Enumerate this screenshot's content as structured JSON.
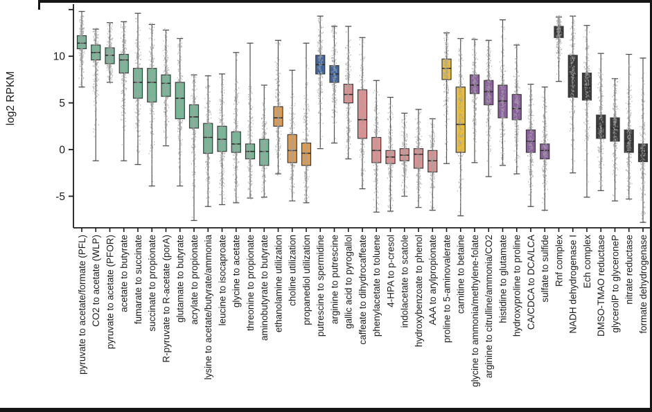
{
  "chart_data": {
    "type": "box",
    "title": "",
    "ylabel": "log2 RPKM",
    "xlabel": "",
    "ylim": [
      -8.5,
      15.4
    ],
    "yticks": [
      15,
      10,
      5,
      0,
      -5
    ],
    "ytick_labels": [
      "",
      "10",
      "5",
      "0",
      "-5"
    ],
    "grid": false,
    "legend": "none",
    "points": "jittered gray points overlaid on each box",
    "palette": {
      "green": "#72b894",
      "orange": "#df9b4e",
      "blue": "#3f66a0",
      "salmon": "#e28f8f",
      "yellow": "#e9bc3a",
      "purple": "#8b5f9d",
      "dark": "#3c3c3c"
    },
    "style": {
      "box_border": "#3a3a3a",
      "median_color": "#2a2a2a",
      "whisker_color": "#4f4f4f",
      "point_color": "#a3a3a3",
      "axis_color": "#1a1a1a",
      "label_color": "#1c1c1c"
    },
    "stats_format": [
      "whisker_low",
      "q1",
      "median",
      "q3",
      "whisker_high"
    ],
    "categories": [
      {
        "label": "pyruvate to acetate/formate (PFL)",
        "group": "green",
        "stats": [
          6.7,
          10.8,
          11.4,
          12.2,
          14.8
        ]
      },
      {
        "label": "CO2 to acetate (WLP)",
        "group": "green",
        "stats": [
          -1.2,
          9.6,
          10.4,
          11.2,
          12.9
        ]
      },
      {
        "label": "pyruvate to acetate (PFOR)",
        "group": "green",
        "stats": [
          7.2,
          9.2,
          10.1,
          10.9,
          13.6
        ]
      },
      {
        "label": "acetate to butyrate",
        "group": "green",
        "stats": [
          -1.2,
          8.2,
          9.6,
          10.2,
          13.7
        ]
      },
      {
        "label": "fumarate to succinate",
        "group": "green",
        "stats": [
          -1.6,
          5.5,
          7.2,
          8.7,
          14.6
        ]
      },
      {
        "label": "succinate to propionate",
        "group": "green",
        "stats": [
          -3.9,
          5.1,
          7.2,
          8.7,
          13.4
        ]
      },
      {
        "label": "R-pyruvate to R-acetate (porA)",
        "group": "green",
        "stats": [
          0.4,
          5.7,
          7.1,
          8.0,
          12.8
        ]
      },
      {
        "label": "glutamate to butyrate",
        "group": "green",
        "stats": [
          -3.9,
          3.3,
          5.5,
          7.2,
          11.9
        ]
      },
      {
        "label": "acrylate to propionate",
        "group": "green",
        "stats": [
          -7.6,
          2.3,
          3.5,
          4.8,
          8.0
        ]
      },
      {
        "label": "lysine to acetate/butyrate/ammonia",
        "group": "green",
        "stats": [
          -6.1,
          -0.4,
          1.3,
          2.8,
          7.9
        ]
      },
      {
        "label": "leucine to isocaproate",
        "group": "green",
        "stats": [
          -5.9,
          -0.2,
          1.1,
          2.5,
          8.1
        ]
      },
      {
        "label": "glycine to acetate",
        "group": "green",
        "stats": [
          -5.7,
          -0.3,
          0.6,
          1.9,
          10.4
        ]
      },
      {
        "label": "threonine to propionate",
        "group": "green",
        "stats": [
          -5.2,
          -1.0,
          -0.2,
          0.6,
          11.4
        ]
      },
      {
        "label": "aminobutyrate to butyrate",
        "group": "green",
        "stats": [
          -5.1,
          -1.7,
          -0.2,
          1.1,
          6.9
        ]
      },
      {
        "label": "ethanolamine utilization",
        "group": "orange",
        "stats": [
          -2.6,
          2.5,
          3.4,
          4.6,
          11.7
        ]
      },
      {
        "label": "choline utilization",
        "group": "orange",
        "stats": [
          -5.5,
          -1.4,
          -0.1,
          1.6,
          8.5
        ]
      },
      {
        "label": "propanediol utilization",
        "group": "orange",
        "stats": [
          -5.7,
          -1.7,
          -0.4,
          0.7,
          11.4
        ]
      },
      {
        "label": "putrescine to spermidine",
        "group": "blue",
        "stats": [
          0.1,
          8.1,
          9.1,
          10.1,
          14.3
        ]
      },
      {
        "label": "arginine to putrescine",
        "group": "blue",
        "stats": [
          0.7,
          7.2,
          8.1,
          9.0,
          13.2
        ]
      },
      {
        "label": "gallic acid to pyrogallol",
        "group": "salmon",
        "stats": [
          -1.0,
          5.0,
          5.9,
          7.0,
          13.2
        ]
      },
      {
        "label": "caffeate to dihydrocaffeate",
        "group": "salmon",
        "stats": [
          -4.2,
          1.2,
          3.2,
          6.4,
          12.0
        ]
      },
      {
        "label": "phenylacetate to toluene",
        "group": "salmon",
        "stats": [
          -6.7,
          -1.4,
          -0.1,
          1.3,
          7.4
        ]
      },
      {
        "label": "4-HPA to p-cresol",
        "group": "salmon",
        "stats": [
          -6.6,
          -1.5,
          -0.8,
          -0.1,
          5.6
        ]
      },
      {
        "label": "indolacetate to scatole",
        "group": "salmon",
        "stats": [
          -5.0,
          -1.2,
          -0.6,
          0.1,
          3.9
        ]
      },
      {
        "label": "hydroxybenzoate to phenol",
        "group": "salmon",
        "stats": [
          -6.2,
          -2.0,
          -0.5,
          0.1,
          4.3
        ]
      },
      {
        "label": "AAA to arylpropionate",
        "group": "salmon",
        "stats": [
          -6.5,
          -2.4,
          -1.2,
          -0.1,
          3.3
        ]
      },
      {
        "label": "proline to 5-aminovalerate",
        "group": "yellow",
        "stats": [
          -1.5,
          7.5,
          8.7,
          9.7,
          12.5
        ]
      },
      {
        "label": "carnitine to betaine",
        "group": "yellow",
        "stats": [
          -7.1,
          -0.3,
          2.7,
          6.7,
          11.9
        ]
      },
      {
        "label": "glycine to ammonia/methylene-folate",
        "group": "purple",
        "stats": [
          -1.4,
          6.0,
          6.9,
          8.0,
          11.8
        ]
      },
      {
        "label": "arginine to citrulline/ammonia/CO2",
        "group": "purple",
        "stats": [
          -2.9,
          4.8,
          6.2,
          7.4,
          11.7
        ]
      },
      {
        "label": "histidine to glutamate",
        "group": "purple",
        "stats": [
          -1.7,
          3.4,
          5.2,
          6.9,
          13.9
        ]
      },
      {
        "label": "hydroxyproline to proline",
        "group": "purple",
        "stats": [
          -2.6,
          3.2,
          4.4,
          5.9,
          11.2
        ]
      },
      {
        "label": "CA/CDCA to DCA/LCA",
        "group": "purple",
        "stats": [
          -6.1,
          -0.3,
          0.9,
          2.1,
          7.0
        ]
      },
      {
        "label": "sulfate to sulfide",
        "group": "purple",
        "stats": [
          -6.5,
          -1.0,
          -0.1,
          0.6,
          6.7
        ]
      },
      {
        "label": "Rnf complex",
        "group": "dark",
        "stats": [
          7.3,
          12.0,
          12.7,
          13.2,
          14.2
        ]
      },
      {
        "label": "NADH dehydrogenase I",
        "group": "dark",
        "stats": [
          -2.5,
          5.6,
          7.9,
          10.1,
          14.3
        ]
      },
      {
        "label": "Ech complex",
        "group": "dark",
        "stats": [
          -5.1,
          5.3,
          6.8,
          8.2,
          13.3
        ]
      },
      {
        "label": "DMSO-TMAO reductase",
        "group": "dark",
        "stats": [
          -4.4,
          1.2,
          2.5,
          3.7,
          10.3
        ]
      },
      {
        "label": "glycerolP to glyceroneP",
        "group": "dark",
        "stats": [
          -5.5,
          0.9,
          2.3,
          3.4,
          7.6
        ]
      },
      {
        "label": "nitrate reductase",
        "group": "dark",
        "stats": [
          -5.3,
          -0.3,
          0.9,
          2.1,
          10.2
        ]
      },
      {
        "label": "formate dehydrogenase",
        "group": "dark",
        "stats": [
          -7.8,
          -1.3,
          -0.3,
          0.6,
          9.8
        ]
      }
    ]
  }
}
